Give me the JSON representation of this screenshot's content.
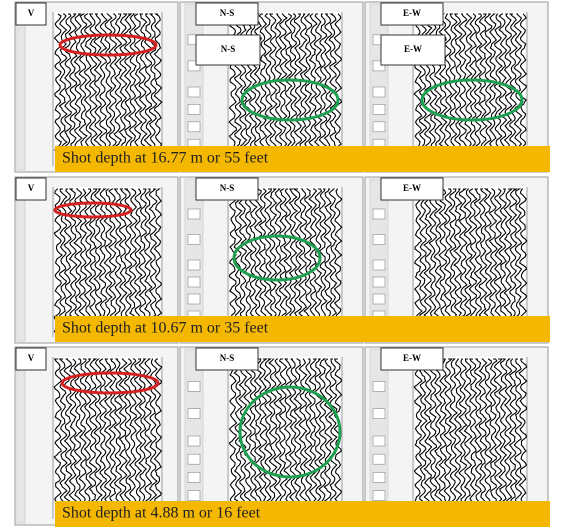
{
  "rows": [
    {
      "panels": [
        {
          "label": "V"
        },
        {
          "label": "N-S",
          "inner_label": "N-S"
        },
        {
          "label": "E-W",
          "inner_label": "E-W"
        }
      ],
      "caption": "Shot depth at 16.77 m or 55 feet"
    },
    {
      "panels": [
        {
          "label": "V"
        },
        {
          "label": "N-S"
        },
        {
          "label": "E-W"
        }
      ],
      "caption": "Shot depth at 10.67 m or 35 feet"
    },
    {
      "panels": [
        {
          "label": "V"
        },
        {
          "label": "N-S"
        },
        {
          "label": "E-W"
        }
      ],
      "caption": "Shot depth at 4.88 m or 16 feet"
    }
  ]
}
